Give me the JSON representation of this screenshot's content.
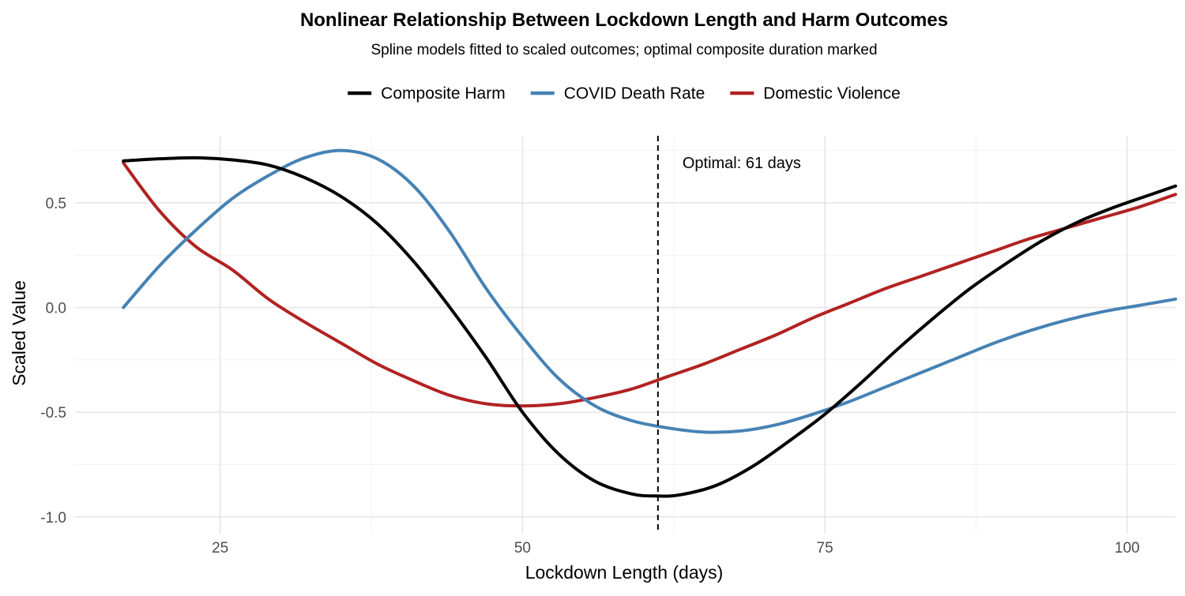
{
  "chart_data": {
    "type": "line",
    "title": "Nonlinear Relationship Between Lockdown Length and Harm Outcomes",
    "subtitle": "Spline models fitted to scaled outcomes; optimal composite duration marked",
    "xlabel": "Lockdown Length (days)",
    "ylabel": "Scaled Value",
    "xlim": [
      13,
      104
    ],
    "ylim": [
      -1.08,
      0.82
    ],
    "x_ticks": [
      25,
      50,
      75,
      100
    ],
    "y_ticks": [
      -1.0,
      -0.5,
      0.0,
      0.5
    ],
    "x_tick_labels": [
      "25",
      "50",
      "75",
      "100"
    ],
    "y_tick_labels": [
      "-1.0",
      "-0.5",
      "0.0",
      "0.5"
    ],
    "grid": true,
    "legend_position": "top",
    "annotation": {
      "label": "Optimal: 61 days",
      "x": 61.2
    },
    "series": [
      {
        "name": "Composite Harm",
        "color": "#000000",
        "points": [
          [
            17,
            0.7
          ],
          [
            20,
            0.71
          ],
          [
            23,
            0.715
          ],
          [
            26,
            0.705
          ],
          [
            29,
            0.68
          ],
          [
            32,
            0.62
          ],
          [
            35,
            0.53
          ],
          [
            38,
            0.4
          ],
          [
            41,
            0.22
          ],
          [
            44,
            0.0
          ],
          [
            47,
            -0.24
          ],
          [
            50,
            -0.5
          ],
          [
            53,
            -0.7
          ],
          [
            56,
            -0.83
          ],
          [
            59,
            -0.89
          ],
          [
            61,
            -0.9
          ],
          [
            63,
            -0.895
          ],
          [
            66,
            -0.85
          ],
          [
            69,
            -0.76
          ],
          [
            72,
            -0.64
          ],
          [
            75,
            -0.51
          ],
          [
            78,
            -0.36
          ],
          [
            81,
            -0.2
          ],
          [
            84,
            -0.05
          ],
          [
            87,
            0.09
          ],
          [
            90,
            0.21
          ],
          [
            93,
            0.32
          ],
          [
            96,
            0.41
          ],
          [
            99,
            0.48
          ],
          [
            102,
            0.54
          ],
          [
            104,
            0.58
          ]
        ]
      },
      {
        "name": "COVID Death Rate",
        "color": "#4682B4",
        "points": [
          [
            17,
            0.0
          ],
          [
            20,
            0.2
          ],
          [
            23,
            0.37
          ],
          [
            26,
            0.52
          ],
          [
            29,
            0.63
          ],
          [
            32,
            0.715
          ],
          [
            35,
            0.75
          ],
          [
            38,
            0.71
          ],
          [
            41,
            0.58
          ],
          [
            44,
            0.36
          ],
          [
            47,
            0.09
          ],
          [
            50,
            -0.14
          ],
          [
            53,
            -0.34
          ],
          [
            56,
            -0.47
          ],
          [
            59,
            -0.54
          ],
          [
            62,
            -0.575
          ],
          [
            65,
            -0.595
          ],
          [
            68,
            -0.59
          ],
          [
            71,
            -0.56
          ],
          [
            74,
            -0.51
          ],
          [
            77,
            -0.45
          ],
          [
            80,
            -0.38
          ],
          [
            83,
            -0.31
          ],
          [
            86,
            -0.24
          ],
          [
            89,
            -0.17
          ],
          [
            92,
            -0.11
          ],
          [
            95,
            -0.06
          ],
          [
            98,
            -0.02
          ],
          [
            101,
            0.01
          ],
          [
            104,
            0.04
          ]
        ]
      },
      {
        "name": "Domestic Violence",
        "color": "#B22222",
        "points": [
          [
            17,
            0.69
          ],
          [
            20,
            0.46
          ],
          [
            23,
            0.29
          ],
          [
            26,
            0.18
          ],
          [
            29,
            0.04
          ],
          [
            32,
            -0.07
          ],
          [
            35,
            -0.17
          ],
          [
            38,
            -0.27
          ],
          [
            41,
            -0.35
          ],
          [
            44,
            -0.42
          ],
          [
            47,
            -0.46
          ],
          [
            50,
            -0.47
          ],
          [
            53,
            -0.46
          ],
          [
            56,
            -0.43
          ],
          [
            59,
            -0.39
          ],
          [
            62,
            -0.33
          ],
          [
            65,
            -0.27
          ],
          [
            68,
            -0.2
          ],
          [
            71,
            -0.13
          ],
          [
            74,
            -0.05
          ],
          [
            77,
            0.02
          ],
          [
            80,
            0.09
          ],
          [
            83,
            0.15
          ],
          [
            86,
            0.21
          ],
          [
            89,
            0.27
          ],
          [
            92,
            0.33
          ],
          [
            95,
            0.38
          ],
          [
            98,
            0.43
          ],
          [
            101,
            0.48
          ],
          [
            104,
            0.54
          ]
        ]
      }
    ]
  }
}
